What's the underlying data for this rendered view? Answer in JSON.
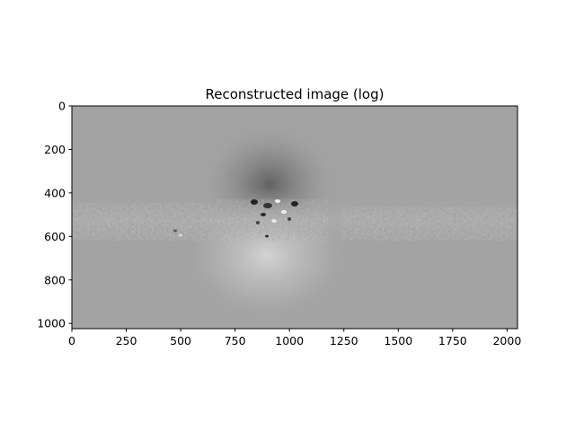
{
  "chart_data": {
    "type": "heatmap",
    "title": "Reconstructed image (log)",
    "xlabel": "",
    "ylabel": "",
    "colormap": "gray",
    "image_size": [
      2048,
      1024
    ],
    "xlim": [
      0,
      2048
    ],
    "ylim": [
      1024,
      0
    ],
    "x_ticks": [
      0,
      250,
      500,
      750,
      1000,
      1250,
      1500,
      1750,
      2000
    ],
    "y_ticks": [
      0,
      200,
      400,
      600,
      800,
      1000
    ],
    "background_color": "#a3a3a3",
    "grid": false
  }
}
